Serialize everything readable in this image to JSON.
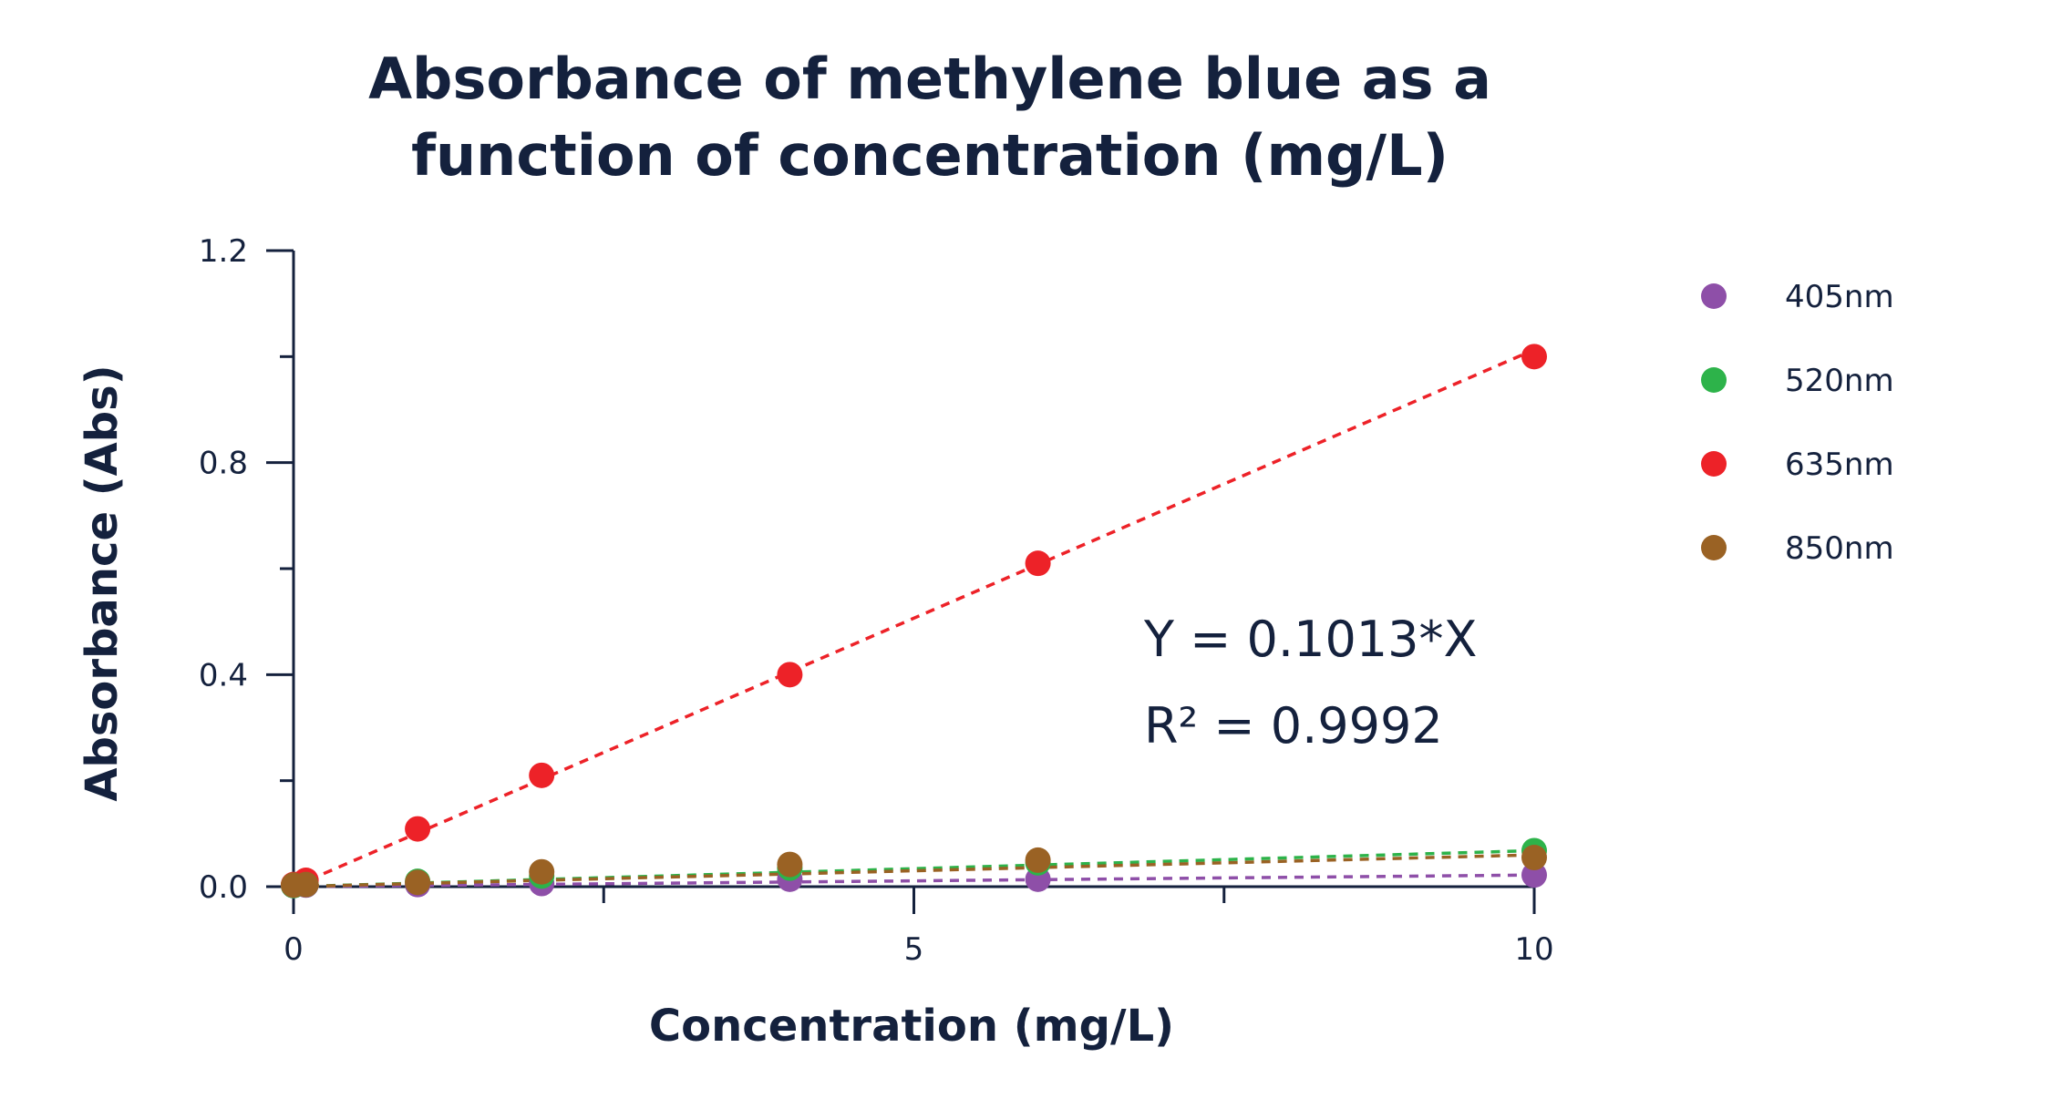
{
  "chart_data": {
    "type": "scatter",
    "title": [
      "Absorbance of methylene blue as a",
      "function of concentration (mg/L)"
    ],
    "xlabel": "Concentration (mg/L)",
    "ylabel": "Absorbance (Abs)",
    "xlim": [
      0,
      10
    ],
    "ylim": [
      0,
      1.2
    ],
    "xticks": [
      0,
      5,
      10
    ],
    "xtick_labels": [
      "0",
      "5",
      "10"
    ],
    "xticks_minor": [
      2.5,
      7.5
    ],
    "yticks": [
      0,
      0.4,
      0.8,
      1.2
    ],
    "ytick_labels": [
      "0.0",
      "0.4",
      "0.8",
      "1.2"
    ],
    "yticks_minor": [
      0.2,
      0.6,
      1.0
    ],
    "grid": false,
    "legend_position": "top-right",
    "series": [
      {
        "name": "405nm",
        "color": "#8e4fa8",
        "points": [
          [
            0,
            0.002
          ],
          [
            0.1,
            0.003
          ],
          [
            1,
            0.004
          ],
          [
            2,
            0.006
          ],
          [
            4,
            0.014
          ],
          [
            6,
            0.014
          ],
          [
            10,
            0.022
          ]
        ],
        "trend_slope": 0.0022
      },
      {
        "name": "520nm",
        "color": "#2db34a",
        "points": [
          [
            0,
            0.002
          ],
          [
            0.1,
            0.004
          ],
          [
            1,
            0.01
          ],
          [
            2,
            0.02
          ],
          [
            4,
            0.035
          ],
          [
            6,
            0.045
          ],
          [
            10,
            0.068
          ]
        ],
        "trend_slope": 0.0068
      },
      {
        "name": "635nm",
        "color": "#ed2228",
        "points": [
          [
            0,
            0.004
          ],
          [
            0.1,
            0.012
          ],
          [
            1,
            0.109
          ],
          [
            2,
            0.21
          ],
          [
            4,
            0.4
          ],
          [
            6,
            0.61
          ],
          [
            10,
            1.0
          ]
        ],
        "trend_slope": 0.1013
      },
      {
        "name": "850nm",
        "color": "#9a6224",
        "points": [
          [
            0,
            0.003
          ],
          [
            0.1,
            0.004
          ],
          [
            1,
            0.008
          ],
          [
            2,
            0.028
          ],
          [
            4,
            0.042
          ],
          [
            6,
            0.05
          ],
          [
            10,
            0.055
          ]
        ],
        "trend_slope": 0.006
      }
    ],
    "annotations": [
      "Y = 0.1013*X",
      "R² = 0.9992"
    ]
  }
}
